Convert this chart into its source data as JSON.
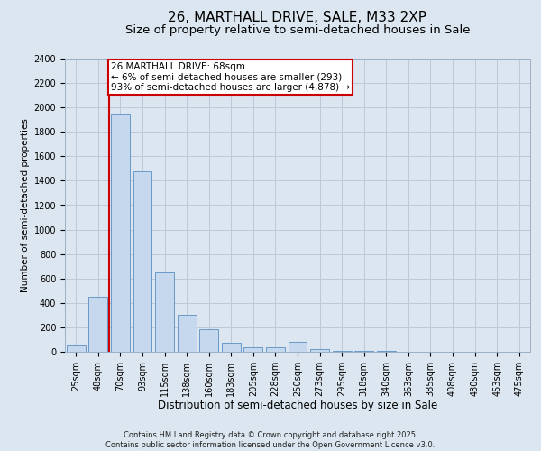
{
  "title": "26, MARTHALL DRIVE, SALE, M33 2XP",
  "subtitle": "Size of property relative to semi-detached houses in Sale",
  "xlabel": "Distribution of semi-detached houses by size in Sale",
  "ylabel": "Number of semi-detached properties",
  "categories": [
    "25sqm",
    "48sqm",
    "70sqm",
    "93sqm",
    "115sqm",
    "138sqm",
    "160sqm",
    "183sqm",
    "205sqm",
    "228sqm",
    "250sqm",
    "273sqm",
    "295sqm",
    "318sqm",
    "340sqm",
    "363sqm",
    "385sqm",
    "408sqm",
    "430sqm",
    "453sqm",
    "475sqm"
  ],
  "values": [
    50,
    450,
    1950,
    1475,
    650,
    300,
    185,
    75,
    40,
    35,
    80,
    20,
    5,
    5,
    5,
    2,
    2,
    2,
    1,
    1,
    1
  ],
  "bar_color": "#c5d8ed",
  "bar_edge_color": "#5a8fc2",
  "marker_line_color": "#cc0000",
  "annotation_text": "26 MARTHALL DRIVE: 68sqm\n← 6% of semi-detached houses are smaller (293)\n93% of semi-detached houses are larger (4,878) →",
  "annotation_box_color": "#ffffff",
  "annotation_box_edge_color": "#cc0000",
  "ylim": [
    0,
    2400
  ],
  "yticks": [
    0,
    200,
    400,
    600,
    800,
    1000,
    1200,
    1400,
    1600,
    1800,
    2000,
    2200,
    2400
  ],
  "grid_color": "#c0c8d8",
  "background_color": "#dce6f0",
  "plot_bg_color": "#dce6f0",
  "footer_text": "Contains HM Land Registry data © Crown copyright and database right 2025.\nContains public sector information licensed under the Open Government Licence v3.0.",
  "title_fontsize": 11,
  "subtitle_fontsize": 9.5,
  "xlabel_fontsize": 8.5,
  "ylabel_fontsize": 7.5,
  "tick_fontsize": 7,
  "footer_fontsize": 6,
  "annotation_fontsize": 7.5
}
